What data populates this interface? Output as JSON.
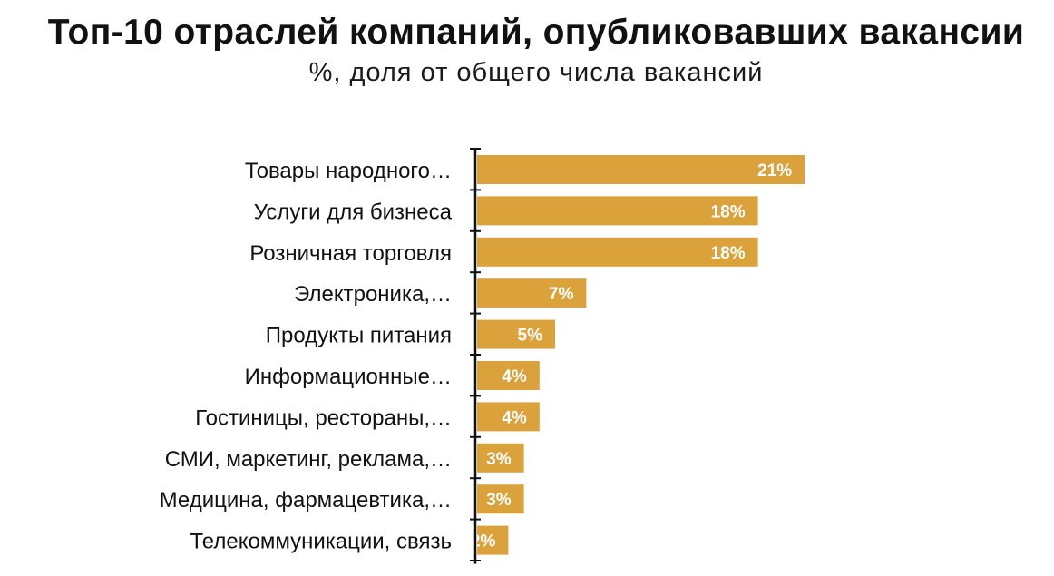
{
  "chart_data": {
    "type": "bar",
    "orientation": "horizontal",
    "title": "Топ-10 отраслей компаний, опубликовавших вакансии",
    "subtitle": "%, доля от общего числа вакансий",
    "categories": [
      "Товары народного…",
      "Услуги для бизнеса",
      "Розничная торговля",
      "Электроника,…",
      "Продукты питания",
      "Информационные…",
      "Гостиницы, рестораны,…",
      "СМИ, маркетинг, реклама,…",
      "Медицина, фармацевтика,…",
      "Телекоммуникации, связь"
    ],
    "values": [
      21,
      18,
      18,
      7,
      5,
      4,
      4,
      3,
      3,
      2
    ],
    "value_labels": [
      "21%",
      "18%",
      "18%",
      "7%",
      "5%",
      "4%",
      "4%",
      "3%",
      "3%",
      "2%"
    ],
    "unit": "%",
    "bar_color": "#dba23b",
    "axis_color": "#111111",
    "grid": false,
    "legend": "none"
  }
}
